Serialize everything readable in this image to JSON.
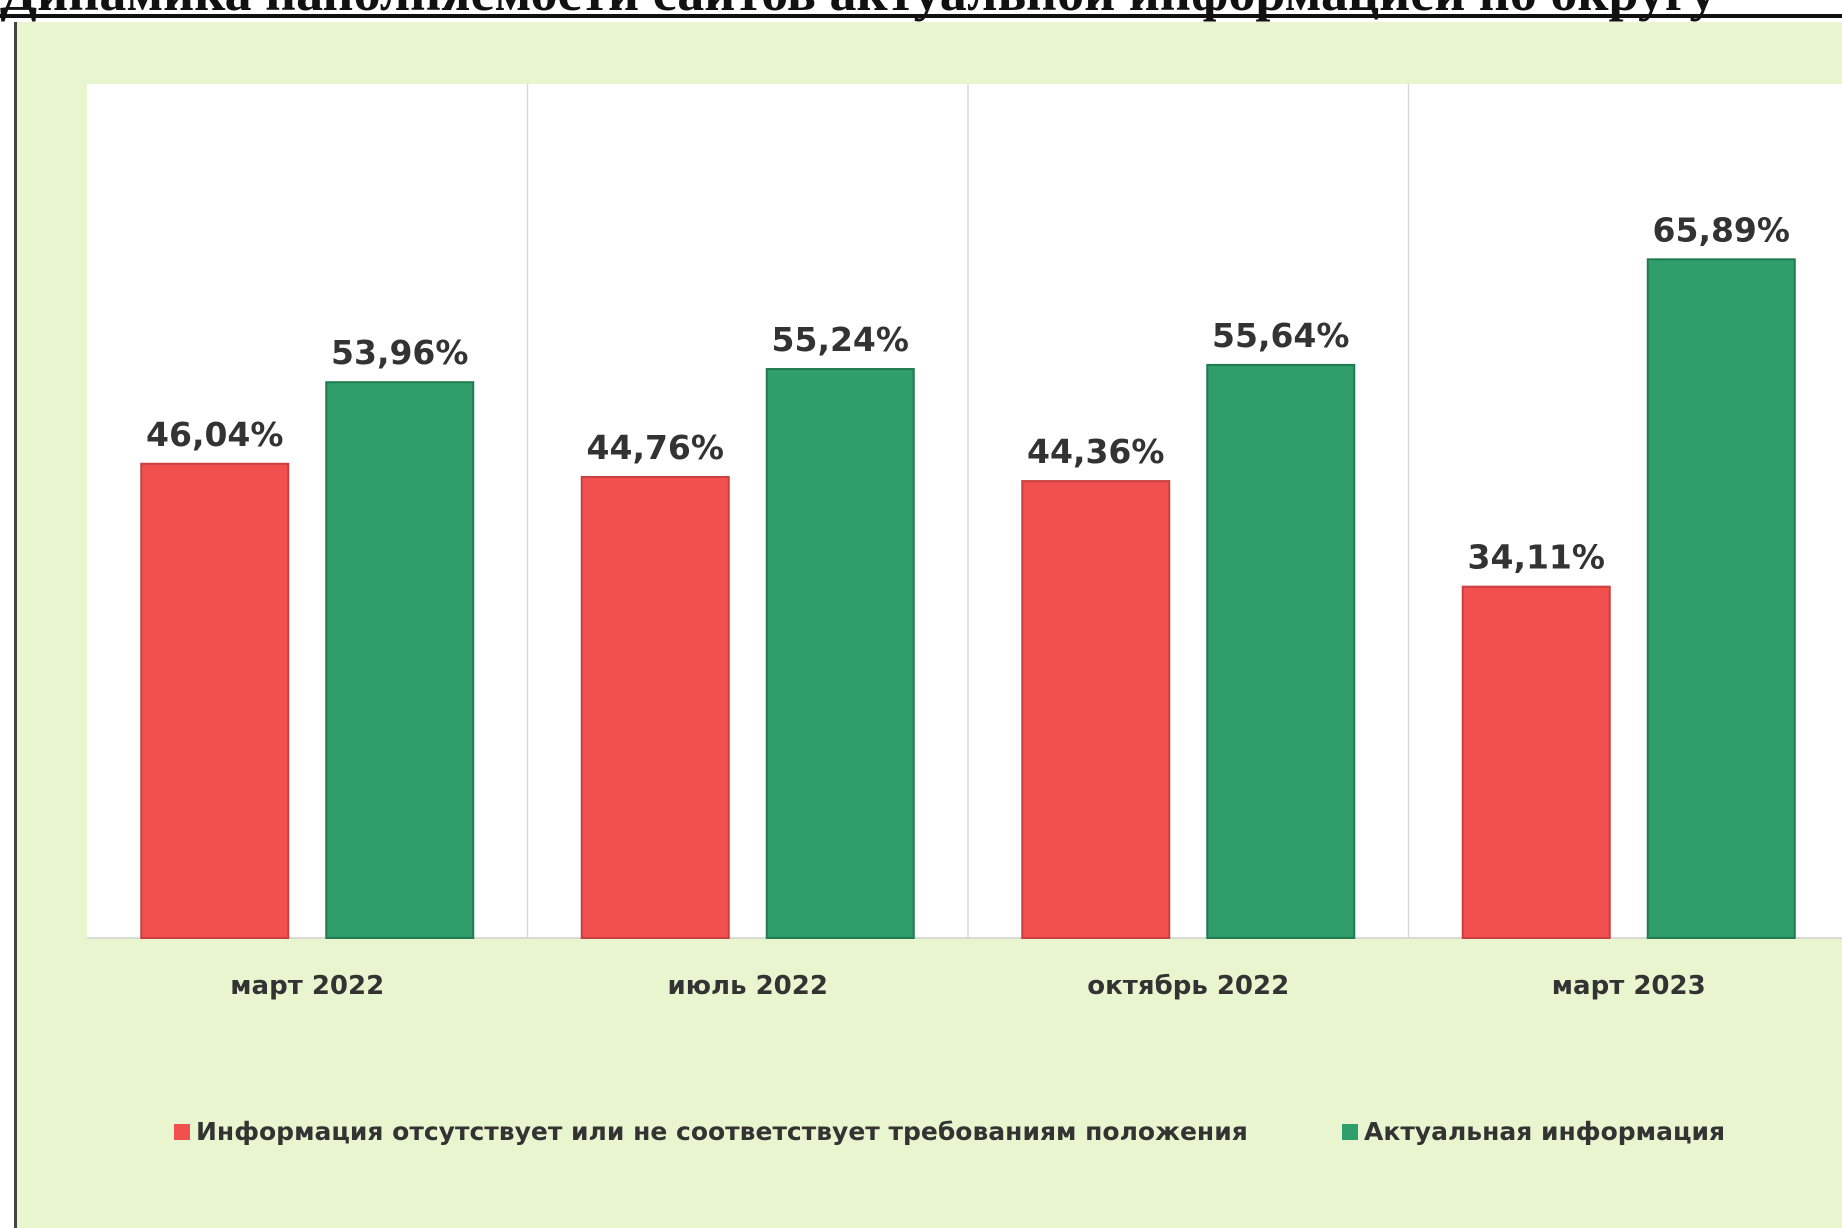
{
  "title": "Динамика наполняемости сайтов актуальной информацией по округу",
  "chart_data": {
    "type": "bar",
    "categories": [
      "март 2022",
      "июль 2022",
      "октябрь 2022",
      "март 2023"
    ],
    "series": [
      {
        "name": "Информация отсутствует или не соответствует требованиям положения",
        "color": "#f1504f",
        "values": [
          46.04,
          44.76,
          44.36,
          34.11
        ],
        "labels": [
          "46,04%",
          "44,76%",
          "44,36%",
          "34,11%"
        ]
      },
      {
        "name": "Актуальная информация",
        "color": "#2f9e6a",
        "values": [
          53.96,
          55.24,
          55.64,
          65.89
        ],
        "labels": [
          "53,96%",
          "55,24%",
          "55,64%",
          "65,89%"
        ]
      }
    ],
    "ylim": [
      0,
      85
    ],
    "grid": "vertical-separators",
    "legend": "bottom"
  }
}
